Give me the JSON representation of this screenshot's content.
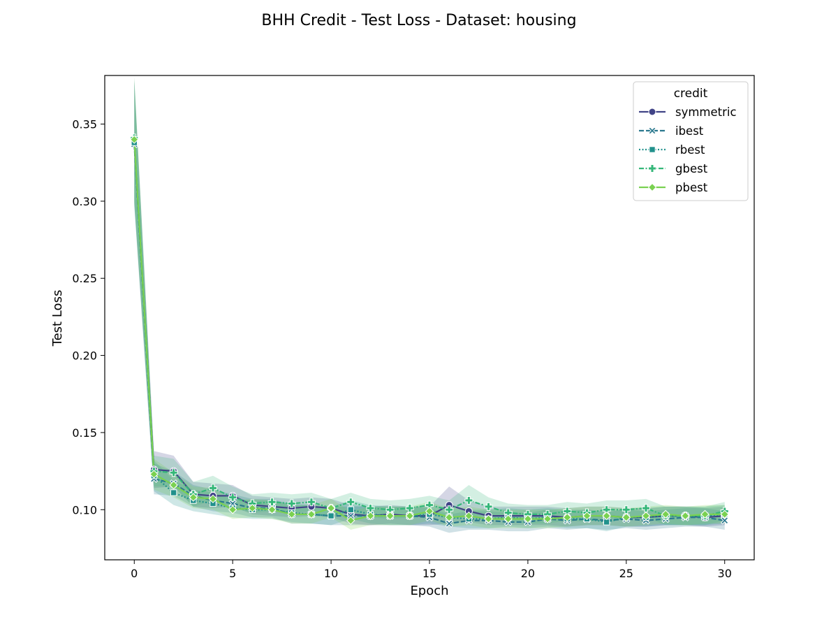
{
  "chart_data": {
    "type": "line",
    "title": "BHH Credit - Test Loss - Dataset: housing",
    "xlabel": "Epoch",
    "ylabel": "Test Loss",
    "xlim": [
      -1.5,
      31.5
    ],
    "ylim": [
      0.0675,
      0.3815
    ],
    "xticks": [
      0,
      5,
      10,
      15,
      20,
      25,
      30
    ],
    "xtick_labels": [
      "0",
      "5",
      "10",
      "15",
      "20",
      "25",
      "30"
    ],
    "yticks": [
      0.1,
      0.15,
      0.2,
      0.25,
      0.3,
      0.35
    ],
    "ytick_labels": [
      "0.10",
      "0.15",
      "0.20",
      "0.25",
      "0.30",
      "0.35"
    ],
    "grid": false,
    "legend": {
      "title": "credit",
      "position": "top-right"
    },
    "x": [
      0,
      1,
      2,
      3,
      4,
      5,
      6,
      7,
      8,
      9,
      10,
      11,
      12,
      13,
      14,
      15,
      16,
      17,
      18,
      19,
      20,
      21,
      22,
      23,
      24,
      25,
      26,
      27,
      28,
      29,
      30
    ],
    "series": [
      {
        "name": "symmetric",
        "color": "#414487",
        "dash": "solid",
        "marker": "circle",
        "values": [
          0.339,
          0.126,
          0.125,
          0.11,
          0.109,
          0.109,
          0.103,
          0.102,
          0.101,
          0.102,
          0.101,
          0.097,
          0.096,
          0.097,
          0.096,
          0.096,
          0.103,
          0.099,
          0.096,
          0.096,
          0.096,
          0.096,
          0.095,
          0.096,
          0.096,
          0.095,
          0.095,
          0.096,
          0.096,
          0.095,
          0.096
        ],
        "band": [
          0.04,
          0.012,
          0.01,
          0.008,
          0.008,
          0.007,
          0.006,
          0.006,
          0.006,
          0.006,
          0.006,
          0.006,
          0.006,
          0.006,
          0.006,
          0.006,
          0.012,
          0.007,
          0.006,
          0.006,
          0.006,
          0.006,
          0.006,
          0.006,
          0.006,
          0.006,
          0.006,
          0.006,
          0.006,
          0.006,
          0.006
        ]
      },
      {
        "name": "ibest",
        "color": "#2a788e",
        "dash": "dashed",
        "marker": "x",
        "values": [
          0.337,
          0.12,
          0.117,
          0.109,
          0.106,
          0.104,
          0.101,
          0.101,
          0.097,
          0.097,
          0.096,
          0.096,
          0.096,
          0.096,
          0.096,
          0.095,
          0.091,
          0.093,
          0.093,
          0.092,
          0.092,
          0.094,
          0.093,
          0.094,
          0.093,
          0.094,
          0.093,
          0.094,
          0.095,
          0.095,
          0.093
        ],
        "band": [
          0.04,
          0.01,
          0.008,
          0.007,
          0.007,
          0.006,
          0.006,
          0.006,
          0.006,
          0.006,
          0.006,
          0.006,
          0.006,
          0.006,
          0.006,
          0.006,
          0.006,
          0.006,
          0.006,
          0.006,
          0.006,
          0.006,
          0.006,
          0.006,
          0.006,
          0.006,
          0.006,
          0.006,
          0.006,
          0.006,
          0.006
        ]
      },
      {
        "name": "rbest",
        "color": "#21918c",
        "dash": "dotted",
        "marker": "square",
        "values": [
          0.338,
          0.122,
          0.111,
          0.106,
          0.104,
          0.101,
          0.1,
          0.1,
          0.098,
          0.097,
          0.096,
          0.1,
          0.097,
          0.096,
          0.096,
          0.097,
          0.095,
          0.094,
          0.094,
          0.095,
          0.094,
          0.095,
          0.094,
          0.094,
          0.092,
          0.095,
          0.095,
          0.096,
          0.096,
          0.096,
          0.097
        ],
        "band": [
          0.04,
          0.01,
          0.008,
          0.007,
          0.007,
          0.006,
          0.006,
          0.006,
          0.006,
          0.006,
          0.006,
          0.006,
          0.006,
          0.006,
          0.006,
          0.006,
          0.006,
          0.006,
          0.006,
          0.006,
          0.006,
          0.006,
          0.006,
          0.006,
          0.006,
          0.006,
          0.006,
          0.006,
          0.006,
          0.006,
          0.006
        ]
      },
      {
        "name": "gbest",
        "color": "#35b779",
        "dash": "dashdot",
        "marker": "plus",
        "values": [
          0.341,
          0.125,
          0.124,
          0.11,
          0.114,
          0.108,
          0.104,
          0.105,
          0.104,
          0.105,
          0.101,
          0.105,
          0.101,
          0.1,
          0.101,
          0.103,
          0.1,
          0.106,
          0.102,
          0.098,
          0.097,
          0.097,
          0.099,
          0.098,
          0.1,
          0.1,
          0.101,
          0.096,
          0.096,
          0.096,
          0.099
        ],
        "band": [
          0.04,
          0.01,
          0.009,
          0.008,
          0.008,
          0.007,
          0.006,
          0.006,
          0.006,
          0.006,
          0.006,
          0.006,
          0.006,
          0.006,
          0.006,
          0.006,
          0.006,
          0.01,
          0.006,
          0.006,
          0.006,
          0.006,
          0.006,
          0.006,
          0.006,
          0.006,
          0.006,
          0.006,
          0.006,
          0.006,
          0.006
        ]
      },
      {
        "name": "pbest",
        "color": "#7ad151",
        "dash": "solid",
        "marker": "diamond",
        "values": [
          0.34,
          0.123,
          0.116,
          0.108,
          0.107,
          0.1,
          0.101,
          0.1,
          0.097,
          0.097,
          0.101,
          0.093,
          0.096,
          0.096,
          0.096,
          0.099,
          0.095,
          0.096,
          0.094,
          0.094,
          0.094,
          0.094,
          0.095,
          0.096,
          0.096,
          0.095,
          0.096,
          0.097,
          0.096,
          0.097,
          0.097
        ],
        "band": [
          0.04,
          0.01,
          0.008,
          0.007,
          0.007,
          0.006,
          0.006,
          0.006,
          0.006,
          0.006,
          0.006,
          0.006,
          0.006,
          0.006,
          0.006,
          0.006,
          0.006,
          0.006,
          0.006,
          0.006,
          0.006,
          0.006,
          0.006,
          0.006,
          0.006,
          0.006,
          0.006,
          0.006,
          0.006,
          0.006,
          0.006
        ]
      }
    ]
  }
}
